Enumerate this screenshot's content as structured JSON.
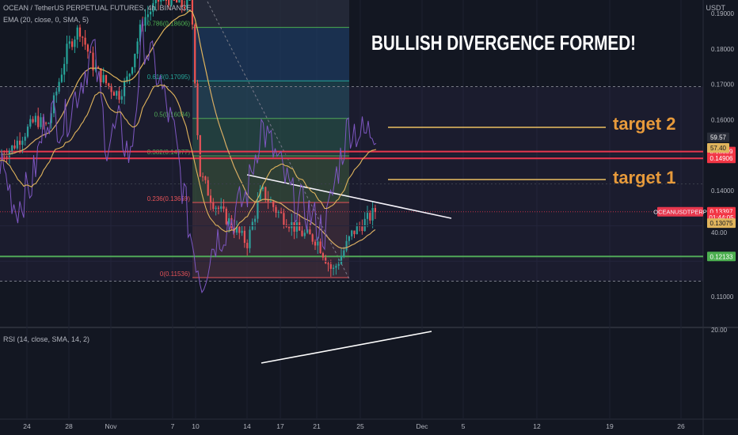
{
  "header": {
    "symbol_line": "OCEAN / TetherUS PERPETUAL FUTURES, 4h, BINANCE",
    "ema_line": "EMA (20, close, 0, SMA, 5)",
    "rsi_line": "RSI (14, close, SMA, 14, 2)",
    "currency": "USDT"
  },
  "annotations": {
    "headline": "BULLISH DIVERGENCE FORMED!",
    "target2": "target 2",
    "target1": "target 1"
  },
  "colors": {
    "background": "#131722",
    "up": "#26a69a",
    "down": "#ef5350",
    "ema": "#e0b45c",
    "rsi": "#7e57c2",
    "red_level": "#f23645",
    "green_level": "#4caf50",
    "target": "#f5c85a",
    "target_text": "#f0a030"
  },
  "chart_data": {
    "type": "candlestick",
    "price_ticks": [
      "0.19000",
      "0.18000",
      "0.17000",
      "0.16000",
      "0.14000",
      "0.11000"
    ],
    "price_range": [
      0.104,
      0.19
    ],
    "x_labels": [
      "24",
      "28",
      "Nov",
      "7",
      "10",
      "14",
      "17",
      "21",
      "25",
      "Dec",
      "5",
      "12",
      "19",
      "26"
    ],
    "fib_levels": [
      {
        "label": "0.786(0.18606)",
        "price": 0.18606
      },
      {
        "label": "0.618(0.17095)",
        "price": 0.17095
      },
      {
        "label": "0.5(0.16034)",
        "price": 0.16034
      },
      {
        "label": "0.382(0.14977)",
        "price": 0.14977
      },
      {
        "label": "0.236(0.13659)",
        "price": 0.13659
      },
      {
        "label": "0(0.11536)",
        "price": 0.11536
      }
    ],
    "price_tags": [
      {
        "text": "0.15099",
        "price": 0.15099,
        "kind": "red"
      },
      {
        "text": "0.14906",
        "price": 0.14906,
        "kind": "red"
      },
      {
        "text": "OCEANUSDTPERP",
        "price": 0.13397,
        "kind": "symbol"
      },
      {
        "text": "0.13397",
        "price": 0.13397,
        "kind": "red"
      },
      {
        "text": "01:44:05",
        "price": 0.1323,
        "kind": "timer"
      },
      {
        "text": "0.13075",
        "price": 0.13075,
        "kind": "ema"
      },
      {
        "text": "0.12133",
        "price": 0.12133,
        "kind": "green"
      }
    ],
    "horizontal_levels": [
      {
        "price": 0.15099,
        "kind": "red"
      },
      {
        "price": 0.14906,
        "kind": "red"
      },
      {
        "price": 0.12133,
        "kind": "green"
      }
    ],
    "rsi": {
      "ticks": [
        "40.00",
        "20.00"
      ],
      "tags": [
        {
          "text": "59.57",
          "value": 59.57,
          "kind": "rsi"
        },
        {
          "text": "57.40",
          "value": 57.4,
          "kind": "sma"
        }
      ],
      "range": [
        15,
        85
      ]
    }
  }
}
